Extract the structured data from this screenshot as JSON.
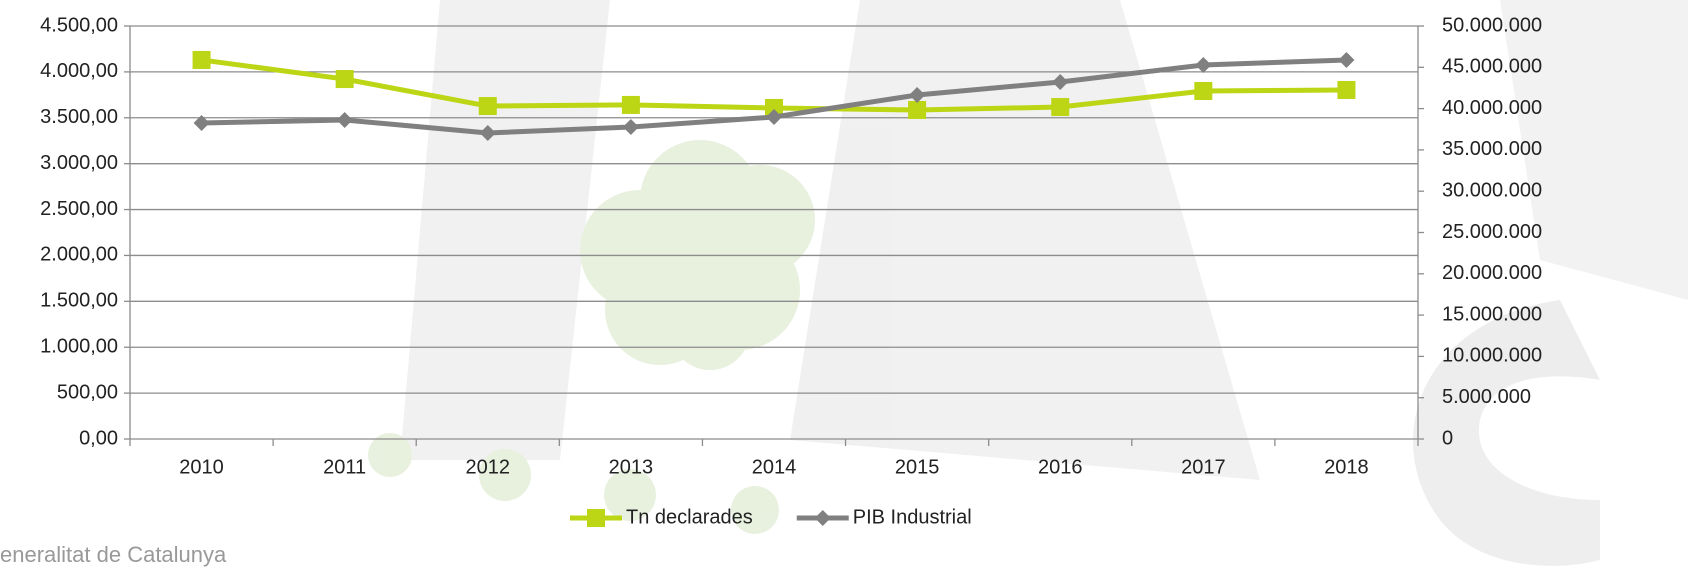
{
  "chart_data": {
    "type": "line",
    "categories": [
      "2010",
      "2011",
      "2012",
      "2013",
      "2014",
      "2015",
      "2016",
      "2017",
      "2018"
    ],
    "series": [
      {
        "name": "Tn declarades",
        "color": "#bcd514",
        "marker": "square",
        "values": [
          4130,
          3922,
          3628,
          3640,
          3607,
          3585,
          3617,
          3792,
          3803
        ]
      },
      {
        "name": "PIB Industrial",
        "color": "#808080",
        "marker": "diamond",
        "axis": "y2",
        "values": [
          38260000,
          38620000,
          37050000,
          37770000,
          38980000,
          41650000,
          43220000,
          45280000,
          45880000
        ]
      }
    ],
    "ylim": [
      0,
      4500
    ],
    "yticks": [
      {
        "value": 0,
        "label": "0,00"
      },
      {
        "value": 500,
        "label": "500,00"
      },
      {
        "value": 1000,
        "label": "1.000,00"
      },
      {
        "value": 1500,
        "label": "1.500,00"
      },
      {
        "value": 2000,
        "label": "2.000,00"
      },
      {
        "value": 2500,
        "label": "2.500,00"
      },
      {
        "value": 3000,
        "label": "3.000,00"
      },
      {
        "value": 3500,
        "label": "3.500,00"
      },
      {
        "value": 4000,
        "label": "4.000,00"
      },
      {
        "value": 4500,
        "label": "4.500,00"
      }
    ],
    "y2lim": [
      0,
      50000000
    ],
    "y2ticks": [
      0,
      {
        "value": 5000000,
        "label": "5.000.000"
      },
      {
        "value": 10000000,
        "label": "10.000.000"
      },
      {
        "value": 15000000,
        "label": "15.000.000"
      },
      {
        "value": 20000000,
        "label": "20.000.000"
      },
      {
        "value": 25000000,
        "label": "25.000.000"
      },
      {
        "value": 30000000,
        "label": "30.000.000"
      },
      {
        "value": 35000000,
        "label": "35.000.000"
      },
      {
        "value": 40000000,
        "label": "40.000.000"
      },
      {
        "value": 45000000,
        "label": "45.000.000"
      },
      {
        "value": 50000000,
        "label": "50.000.000"
      }
    ],
    "grid": true,
    "legend": "bottom",
    "footer_text": "eneralitat de Catalunya"
  }
}
